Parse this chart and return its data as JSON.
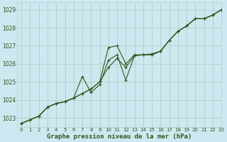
{
  "title": "Graphe pression niveau de la mer (hPa)",
  "bg_color": "#cde8f0",
  "grid_color": "#b0d4c8",
  "line_color": "#2d5a1b",
  "xlim": [
    -0.5,
    23
  ],
  "ylim": [
    1022.5,
    1029.4
  ],
  "yticks": [
    1023,
    1024,
    1025,
    1026,
    1027,
    1028,
    1029
  ],
  "xticks": [
    0,
    1,
    2,
    3,
    4,
    5,
    6,
    7,
    8,
    9,
    10,
    11,
    12,
    13,
    14,
    15,
    16,
    17,
    18,
    19,
    20,
    21,
    22,
    23
  ],
  "series1_x": [
    0,
    1,
    2,
    3,
    4,
    5,
    6,
    7,
    8,
    9,
    10,
    11,
    12,
    13,
    14,
    15,
    16,
    17,
    18,
    19,
    20,
    21,
    22,
    23
  ],
  "series1_y": [
    1022.7,
    1022.9,
    1023.1,
    1023.6,
    1023.8,
    1023.9,
    1024.1,
    1024.35,
    1024.6,
    1025.0,
    1026.9,
    1027.0,
    1026.0,
    1026.5,
    1026.5,
    1026.5,
    1026.7,
    1027.3,
    1027.8,
    1028.1,
    1028.5,
    1028.5,
    1028.7,
    1029.0
  ],
  "series2_x": [
    0,
    1,
    2,
    3,
    4,
    5,
    6,
    7,
    8,
    9,
    10,
    11,
    12,
    13,
    14,
    15,
    16,
    17,
    18,
    19,
    20,
    21,
    22,
    23
  ],
  "series2_y": [
    1022.7,
    1022.9,
    1023.1,
    1023.6,
    1023.8,
    1023.9,
    1024.1,
    1025.3,
    1024.4,
    1024.85,
    1026.2,
    1026.5,
    1025.1,
    1026.45,
    1026.5,
    1026.5,
    1026.7,
    1027.3,
    1027.8,
    1028.1,
    1028.5,
    1028.5,
    1028.7,
    1029.0
  ],
  "series3_x": [
    0,
    1,
    2,
    3,
    4,
    5,
    6,
    7,
    8,
    9,
    10,
    11,
    12,
    13,
    14,
    15,
    16,
    17,
    18,
    19,
    20,
    21,
    22,
    23
  ],
  "series3_y": [
    1022.7,
    1022.9,
    1023.1,
    1023.6,
    1023.8,
    1023.9,
    1024.1,
    1024.35,
    1024.6,
    1025.0,
    1025.8,
    1026.3,
    1025.8,
    1026.45,
    1026.5,
    1026.55,
    1026.7,
    1027.3,
    1027.8,
    1028.1,
    1028.5,
    1028.5,
    1028.7,
    1029.0
  ],
  "ylabel_fontsize": 5.5,
  "xlabel_fontsize": 5.5,
  "title_fontsize": 6.5,
  "tick_fontsize": 5
}
